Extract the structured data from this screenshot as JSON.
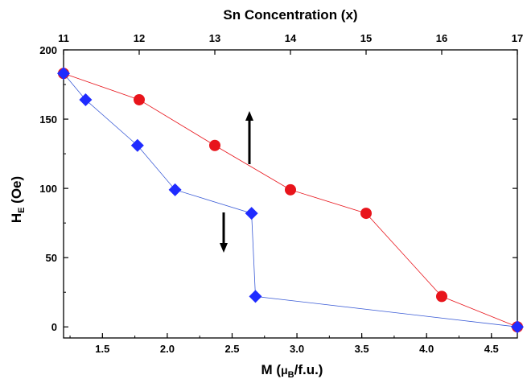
{
  "chart_data": {
    "type": "scatter",
    "title": "",
    "x_top": {
      "label": "Sn Concentration (x)",
      "range": [
        11,
        17
      ],
      "ticks": [
        "11",
        "12",
        "13",
        "14",
        "15",
        "16",
        "17"
      ]
    },
    "x_bottom": {
      "label_main": "M (",
      "label_mu": "μ",
      "label_sub": "B",
      "label_tail": "/f.u.)",
      "range": [
        1.2,
        4.7
      ],
      "ticks": [
        "1.5",
        "2.0",
        "2.5",
        "3.0",
        "3.5",
        "4.0",
        "4.5"
      ]
    },
    "y": {
      "label_main": "H",
      "label_sub": "E",
      "label_tail": " (Oe)",
      "range": [
        -8,
        200
      ],
      "ticks": [
        "0",
        "50",
        "100",
        "150",
        "200"
      ]
    },
    "grid": false,
    "series": [
      {
        "marker": "circle",
        "color": "#e8141b",
        "line_color": "#e8141b",
        "x_axis": "top",
        "x": [
          11,
          12,
          13,
          14,
          15,
          16,
          17
        ],
        "y": [
          183,
          164,
          131,
          99,
          82,
          22,
          0
        ]
      },
      {
        "marker": "diamond",
        "color": "#1f2bff",
        "line_color": "#3a5bd6",
        "x_axis": "bottom",
        "x": [
          1.2,
          1.37,
          1.77,
          2.06,
          2.65,
          2.68,
          4.7
        ],
        "y": [
          183,
          164,
          131,
          99,
          82,
          22,
          0
        ]
      }
    ],
    "annotations": [
      {
        "type": "arrow",
        "direction": "up",
        "points_to_axis": "top"
      },
      {
        "type": "arrow",
        "direction": "down",
        "points_to_axis": "bottom"
      }
    ]
  }
}
